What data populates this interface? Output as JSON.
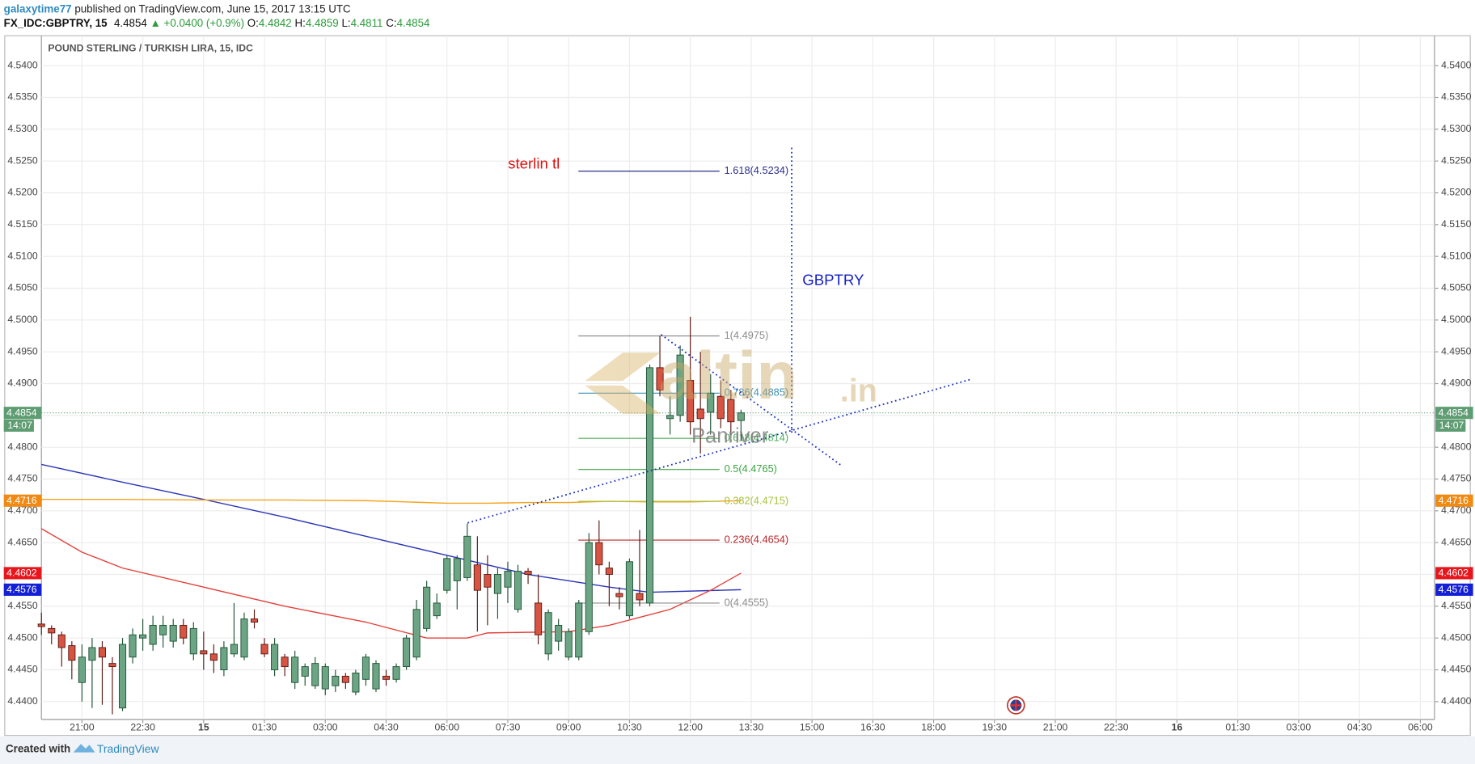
{
  "header": {
    "user": "galaxytime77",
    "published": "published on TradingView.com, June 15, 2017 13:15 UTC",
    "symbol": "FX_IDC:GBPTRY, 15",
    "last": "4.4854",
    "change": "▲ +0.0400 (+0.9%)",
    "ohlc": [
      [
        "O:",
        "4.4842"
      ],
      [
        "H:",
        "4.4859"
      ],
      [
        "L:",
        "4.4811"
      ],
      [
        "C:",
        "4.4854"
      ]
    ]
  },
  "footer": {
    "created": "Created with",
    "brand": "TradingView"
  },
  "chart_data": {
    "type": "candlestick",
    "title": "POUND STERLING / TURKISH LIRA, 15, IDC",
    "up_color": "#6ba583",
    "up_border": "#225437",
    "down_color": "#d75442",
    "down_border": "#5b1a13",
    "grid": true,
    "xlim": [
      20,
      54.35
    ],
    "ylim": [
      4.4372,
      4.5447
    ],
    "xticks": [
      {
        "value": 21,
        "label": "21:00"
      },
      {
        "value": 22.5,
        "label": "22:30"
      },
      {
        "value": 24,
        "label": "15"
      },
      {
        "value": 25.5,
        "label": "01:30"
      },
      {
        "value": 27,
        "label": "03:00"
      },
      {
        "value": 28.5,
        "label": "04:30"
      },
      {
        "value": 30,
        "label": "06:00"
      },
      {
        "value": 31.5,
        "label": "07:30"
      },
      {
        "value": 33,
        "label": "09:00"
      },
      {
        "value": 34.5,
        "label": "10:30"
      },
      {
        "value": 36,
        "label": "12:00"
      },
      {
        "value": 37.5,
        "label": "13:30"
      },
      {
        "value": 39,
        "label": "15:00"
      },
      {
        "value": 40.5,
        "label": "16:30"
      },
      {
        "value": 42,
        "label": "18:00"
      },
      {
        "value": 43.5,
        "label": "19:30"
      },
      {
        "value": 45,
        "label": "21:00"
      },
      {
        "value": 46.5,
        "label": "22:30"
      },
      {
        "value": 48,
        "label": "16"
      },
      {
        "value": 49.5,
        "label": "01:30"
      },
      {
        "value": 51,
        "label": "03:00"
      },
      {
        "value": 52.5,
        "label": "04:30"
      },
      {
        "value": 54,
        "label": "06:00"
      }
    ],
    "yticks": [
      {
        "value": 4.44,
        "label": "4.4400"
      },
      {
        "value": 4.445,
        "label": "4.4450"
      },
      {
        "value": 4.45,
        "label": "4.4500"
      },
      {
        "value": 4.455,
        "label": "4.4550"
      },
      {
        "value": 4.46,
        "label": "4.4600"
      },
      {
        "value": 4.465,
        "label": "4.4650"
      },
      {
        "value": 4.47,
        "label": "4.4700"
      },
      {
        "value": 4.475,
        "label": "4.4750"
      },
      {
        "value": 4.48,
        "label": "4.4800"
      },
      {
        "value": 4.485,
        "label": "4.4850"
      },
      {
        "value": 4.49,
        "label": "4.4900"
      },
      {
        "value": 4.495,
        "label": "4.4950"
      },
      {
        "value": 4.5,
        "label": "4.5000"
      },
      {
        "value": 4.505,
        "label": "4.5050"
      },
      {
        "value": 4.51,
        "label": "4.5100"
      },
      {
        "value": 4.515,
        "label": "4.5150"
      },
      {
        "value": 4.52,
        "label": "4.5200"
      },
      {
        "value": 4.525,
        "label": "4.5250"
      },
      {
        "value": 4.53,
        "label": "4.5300"
      },
      {
        "value": 4.535,
        "label": "4.5350"
      },
      {
        "value": 4.54,
        "label": "4.5400"
      }
    ],
    "x": [
      20,
      20.25,
      20.5,
      20.75,
      21,
      21.25,
      21.5,
      21.75,
      22,
      22.25,
      22.5,
      22.75,
      23,
      23.25,
      23.5,
      23.75,
      24,
      24.25,
      24.5,
      24.75,
      25,
      25.25,
      25.5,
      25.75,
      26,
      26.25,
      26.5,
      26.75,
      27,
      27.25,
      27.5,
      27.75,
      28,
      28.25,
      28.5,
      28.75,
      29,
      29.25,
      29.5,
      29.75,
      30,
      30.25,
      30.5,
      30.75,
      31,
      31.25,
      31.5,
      31.75,
      32,
      32.25,
      32.5,
      32.75,
      33,
      33.25,
      33.5,
      33.75,
      34,
      34.25,
      34.5,
      34.75,
      35,
      35.25,
      35.5,
      35.75,
      36,
      36.25,
      36.5,
      36.75,
      37,
      37.25
    ],
    "open": [
      4.4522,
      4.4515,
      4.4505,
      4.4488,
      4.443,
      4.4465,
      4.4485,
      4.446,
      4.439,
      4.447,
      4.45,
      4.449,
      4.4505,
      4.4495,
      4.452,
      4.4475,
      4.448,
      4.4475,
      4.445,
      4.4475,
      4.447,
      4.453,
      4.449,
      4.445,
      4.447,
      4.443,
      4.444,
      4.4425,
      4.442,
      4.4425,
      4.444,
      4.4415,
      4.4435,
      4.442,
      4.444,
      4.4435,
      4.4455,
      4.447,
      4.4515,
      4.4535,
      4.4575,
      4.459,
      4.4595,
      4.4615,
      4.46,
      4.457,
      4.458,
      4.4545,
      4.4605,
      4.4555,
      4.4475,
      4.4495,
      4.447,
      4.447,
      4.451,
      4.465,
      4.461,
      4.457,
      4.4535,
      4.457,
      4.4555,
      4.4925,
      4.4845,
      4.485,
      4.4905,
      4.486,
      4.4855,
      4.488,
      4.4875,
      4.4842
    ],
    "high": [
      4.454,
      4.452,
      4.451,
      4.4495,
      4.449,
      4.45,
      4.4495,
      4.447,
      4.45,
      4.4515,
      4.453,
      4.4535,
      4.4535,
      4.453,
      4.453,
      4.4525,
      4.451,
      4.449,
      4.4495,
      4.4555,
      4.454,
      4.4545,
      4.45,
      4.45,
      4.4475,
      4.448,
      4.446,
      4.447,
      4.446,
      4.445,
      4.4445,
      4.445,
      4.4475,
      4.4465,
      4.445,
      4.446,
      4.4505,
      4.456,
      4.459,
      4.457,
      4.463,
      4.463,
      4.468,
      4.466,
      4.463,
      4.461,
      4.462,
      4.4615,
      4.461,
      4.46,
      4.4545,
      4.453,
      4.4515,
      4.456,
      4.4665,
      4.4685,
      4.462,
      4.458,
      4.4625,
      4.467,
      4.493,
      4.4975,
      4.488,
      4.496,
      4.5005,
      4.495,
      4.4915,
      4.4905,
      4.489,
      4.4859
    ],
    "low": [
      4.4505,
      4.449,
      4.4455,
      4.4435,
      4.44,
      4.439,
      4.4395,
      4.438,
      4.4385,
      4.446,
      4.448,
      4.448,
      4.4485,
      4.4485,
      4.449,
      4.4465,
      4.445,
      4.4445,
      4.444,
      4.447,
      4.4465,
      4.4515,
      4.447,
      4.444,
      4.444,
      4.442,
      4.4425,
      4.442,
      4.441,
      4.4415,
      4.442,
      4.441,
      4.4425,
      4.4415,
      4.4425,
      4.443,
      4.445,
      4.4465,
      4.451,
      4.453,
      4.457,
      4.4545,
      4.459,
      4.451,
      4.452,
      4.453,
      4.4555,
      4.454,
      4.4585,
      4.449,
      4.4465,
      4.448,
      4.4465,
      4.4465,
      4.4505,
      4.46,
      4.455,
      4.4545,
      4.453,
      4.455,
      4.455,
      4.488,
      4.482,
      4.484,
      4.482,
      4.479,
      4.482,
      4.483,
      4.482,
      4.4811
    ],
    "close": [
      4.4518,
      4.4508,
      4.4485,
      4.4465,
      4.447,
      4.4485,
      4.447,
      4.4455,
      4.449,
      4.4505,
      4.4505,
      4.452,
      4.452,
      4.452,
      4.45,
      4.4515,
      4.4475,
      4.4465,
      4.4485,
      4.449,
      4.453,
      4.4525,
      4.4475,
      4.449,
      4.4455,
      4.447,
      4.4455,
      4.446,
      4.4455,
      4.444,
      4.443,
      4.4445,
      4.447,
      4.446,
      4.4435,
      4.4455,
      4.45,
      4.4545,
      4.458,
      4.4555,
      4.4625,
      4.4625,
      4.466,
      4.4575,
      4.458,
      4.46,
      4.4605,
      4.4605,
      4.46,
      4.4505,
      4.454,
      4.452,
      4.451,
      4.4555,
      4.465,
      4.4615,
      4.46,
      4.4565,
      4.462,
      4.456,
      4.4925,
      4.489,
      4.485,
      4.4945,
      4.484,
      4.4845,
      4.4885,
      4.4845,
      4.484,
      4.4854
    ],
    "lines": [
      {
        "color": "#2b36b8",
        "x": [
          20,
          22,
          24,
          26,
          28,
          30,
          32,
          34,
          35,
          37.25
        ],
        "values": [
          4.4773,
          4.4745,
          4.4718,
          4.469,
          4.466,
          4.463,
          4.46,
          4.458,
          4.4572,
          4.4576
        ]
      },
      {
        "color": "#e3413a",
        "x": [
          20,
          21,
          22,
          24,
          26,
          28,
          29.5,
          30.5,
          31,
          33,
          34,
          35.5,
          36.5,
          37.25
        ],
        "values": [
          4.4672,
          4.4635,
          4.461,
          4.458,
          4.455,
          4.4525,
          4.45,
          4.45,
          4.4508,
          4.451,
          4.452,
          4.4545,
          4.4575,
          4.4602
        ]
      },
      {
        "color": "#f5a21a",
        "x": [
          20,
          22,
          24,
          26,
          28,
          29,
          30,
          31,
          32,
          33,
          34,
          35,
          36,
          37.25
        ],
        "values": [
          4.4718,
          4.4718,
          4.4717,
          4.4717,
          4.4716,
          4.4714,
          4.4712,
          4.4712,
          4.4713,
          4.4713,
          4.4715,
          4.4714,
          4.4714,
          4.4716
        ]
      }
    ],
    "fib_x": [
      33.24,
      36.72
    ],
    "fib_levels": [
      {
        "price": 4.5234,
        "label": "1.618(4.5234)",
        "color": "#2b2f8c"
      },
      {
        "price": 4.4975,
        "label": "1(4.4975)",
        "color": "#8c8c8c"
      },
      {
        "price": 4.4885,
        "label": "0.786(4.4885)",
        "color": "#3c90b8"
      },
      {
        "price": 4.4814,
        "label": "0.618(4.4814)",
        "color": "#4cae5c"
      },
      {
        "price": 4.4765,
        "label": "0.5(4.4765)",
        "color": "#3aa540"
      },
      {
        "price": 4.4715,
        "label": "0.382(4.4715)",
        "color": "#a8c23a"
      },
      {
        "price": 4.4654,
        "label": "0.236(4.4654)",
        "color": "#b8272a"
      },
      {
        "price": 4.4555,
        "label": "0(4.4555)",
        "color": "#8c8c8c"
      }
    ],
    "trendlines": [
      {
        "color": "#1a2fbf",
        "x": [
          30.51,
          42.93
        ],
        "values": [
          4.4681,
          4.4907
        ]
      },
      {
        "color": "#1a2fbf",
        "x": [
          35.28,
          39.73
        ],
        "values": [
          4.4977,
          4.4771
        ]
      },
      {
        "color": "#1a2fbf",
        "x": [
          38.5,
          38.5
        ],
        "values": [
          4.5271,
          4.4823
        ]
      }
    ],
    "last_price": 4.4854,
    "countdown": "14:07",
    "price_tags": [
      {
        "value": 4.4854,
        "color": "#5e9c72"
      },
      {
        "value": 4.4716,
        "color": "#f08a12"
      },
      {
        "value": 4.4602,
        "color": "#e8151c"
      },
      {
        "value": 4.4576,
        "color": "#1320d6"
      }
    ],
    "annotations": [
      "sterlin tl",
      "GBPTRY"
    ],
    "watermark": [
      "altin",
      ".in",
      "Panriver"
    ]
  }
}
